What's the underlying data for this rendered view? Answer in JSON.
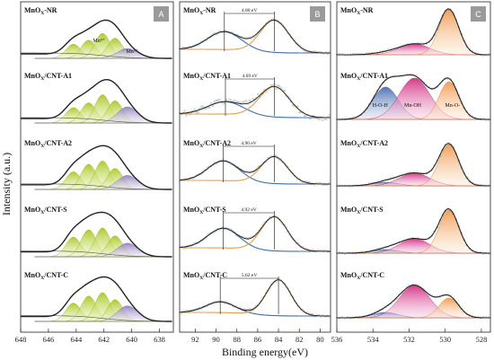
{
  "figure": {
    "ylabel": "Intensity (a.u.)",
    "xlabel": "Binding energy(eV)"
  },
  "chart_data": [
    {
      "type": "line",
      "panel": "A",
      "x_ticks": [
        "648",
        "646",
        "644",
        "642",
        "640",
        "638"
      ],
      "xlim": [
        648,
        637
      ],
      "samples": [
        {
          "name": "MnOx-NR",
          "label": "MnO",
          "label_sub": "X",
          "label_rest": "-NR",
          "peak_labels": [
            "Mn⁴⁺",
            "Mn³⁺"
          ]
        },
        {
          "name": "MnOx/CNT-A1",
          "label": "MnO",
          "label_sub": "X",
          "label_rest": "/CNT-A1"
        },
        {
          "name": "MnOx/CNT-A2",
          "label": "MnO",
          "label_sub": "X",
          "label_rest": "/CNT-A2"
        },
        {
          "name": "MnOx/CNT-S",
          "label": "MnO",
          "label_sub": "X",
          "label_rest": "/CNT-S"
        },
        {
          "name": "MnOx/CNT-C",
          "label": "MnO",
          "label_sub": "X",
          "label_rest": "/CNT-C"
        }
      ]
    },
    {
      "type": "line",
      "panel": "B",
      "x_ticks": [
        "92",
        "90",
        "88",
        "86",
        "84",
        "82",
        "80"
      ],
      "xlim": [
        93.5,
        79
      ],
      "samples": [
        {
          "name": "MnOx-NR",
          "label": "MnO",
          "label_sub": "X",
          "label_rest": "-NR",
          "splitting": "4.80 eV",
          "peak1": 89.2,
          "peak2": 84.4
        },
        {
          "name": "MnOx/CNT-A1",
          "label": "MnO",
          "label_sub": "X",
          "label_rest": "/CNT-A1",
          "splitting": "4.69 eV",
          "peak1": 89.1,
          "peak2": 84.4
        },
        {
          "name": "MnOx/CNT-A2",
          "label": "MnO",
          "label_sub": "X",
          "label_rest": "/CNT-A2",
          "splitting": "4.90 eV",
          "peak1": 89.3,
          "peak2": 84.4
        },
        {
          "name": "MnOx/CNT-S",
          "label": "MnO",
          "label_sub": "X",
          "label_rest": "/CNT-S",
          "splitting": "4.92 eV",
          "peak1": 89.3,
          "peak2": 84.4
        },
        {
          "name": "MnOx/CNT-C",
          "label": "MnO",
          "label_sub": "X",
          "label_rest": "/CNT-C",
          "splitting": "5.62 eV",
          "peak1": 89.6,
          "peak2": 84.0
        }
      ]
    },
    {
      "type": "line",
      "panel": "C",
      "x_ticks": [
        "536",
        "534",
        "532",
        "530",
        "528"
      ],
      "xlim": [
        536,
        527.5
      ],
      "samples": [
        {
          "name": "MnOx-NR",
          "label": "MnO",
          "label_sub": "X",
          "label_rest": "-NR"
        },
        {
          "name": "MnOx/CNT-A1",
          "label": "MnO",
          "label_sub": "X",
          "label_rest": "/CNT-A1",
          "peak_labels": [
            "H-O-H",
            "Mn-OH",
            "Mn-O-"
          ]
        },
        {
          "name": "MnOx/CNT-A2",
          "label": "MnO",
          "label_sub": "X",
          "label_rest": "/CNT-A2"
        },
        {
          "name": "MnOx/CNT-S",
          "label": "MnO",
          "label_sub": "X",
          "label_rest": "/CNT-S"
        },
        {
          "name": "MnOx/CNT-C",
          "label": "MnO",
          "label_sub": "X",
          "label_rest": "/CNT-C"
        }
      ]
    }
  ],
  "colors": {
    "green": "#b5cf27",
    "purple": "#9a85c3",
    "blue_fit": "#3d6fae",
    "orange_fit": "#e2a04d",
    "pink": "#d93d8a",
    "blue_fill": "#5577b8",
    "orange_fill": "#f2a15f",
    "badge": "#9a9a9a",
    "envelope": "#222222"
  }
}
